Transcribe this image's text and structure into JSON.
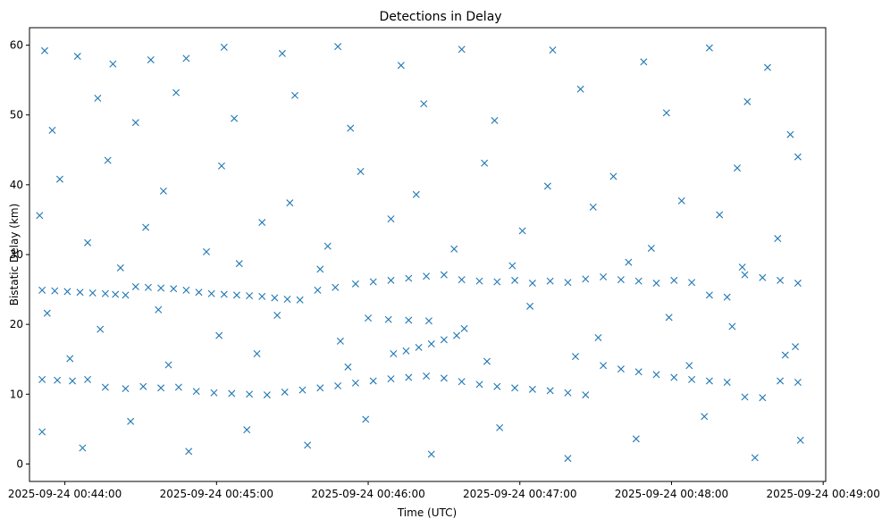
{
  "chart_data": {
    "type": "scatter",
    "title": "Detections in Delay",
    "xlabel": "Time (UTC)",
    "ylabel": "Bistatic Delay (km)",
    "marker": "x",
    "color": "#1f77b4",
    "grid": false,
    "xlim": [
      "2025-09-24 00:43:46",
      "2025-09-24 00:49:01"
    ],
    "ylim": [
      -2.5,
      62.5
    ],
    "x_ticks": [
      "2025-09-24 00:44:00",
      "2025-09-24 00:45:00",
      "2025-09-24 00:46:00",
      "2025-09-24 00:47:00",
      "2025-09-24 00:48:00",
      "2025-09-24 00:49:00"
    ],
    "y_ticks": [
      0,
      10,
      20,
      30,
      40,
      50,
      60
    ],
    "series": [
      {
        "points": [
          [
            "2025-09-24 00:43:51",
            24.9
          ],
          [
            "2025-09-24 00:43:56",
            24.8
          ],
          [
            "2025-09-24 00:44:01",
            24.7
          ],
          [
            "2025-09-24 00:44:06",
            24.6
          ],
          [
            "2025-09-24 00:44:11",
            24.5
          ],
          [
            "2025-09-24 00:44:16",
            24.4
          ],
          [
            "2025-09-24 00:44:20",
            24.3
          ],
          [
            "2025-09-24 00:44:24",
            24.2
          ],
          [
            "2025-09-24 00:44:28",
            25.4
          ],
          [
            "2025-09-24 00:44:33",
            25.3
          ],
          [
            "2025-09-24 00:44:38",
            25.2
          ],
          [
            "2025-09-24 00:44:43",
            25.1
          ],
          [
            "2025-09-24 00:44:48",
            24.9
          ],
          [
            "2025-09-24 00:44:53",
            24.6
          ],
          [
            "2025-09-24 00:44:58",
            24.4
          ],
          [
            "2025-09-24 00:45:03",
            24.3
          ],
          [
            "2025-09-24 00:45:08",
            24.2
          ],
          [
            "2025-09-24 00:45:13",
            24.1
          ],
          [
            "2025-09-24 00:45:18",
            24.0
          ],
          [
            "2025-09-24 00:45:23",
            23.8
          ],
          [
            "2025-09-24 00:45:28",
            23.6
          ],
          [
            "2025-09-24 00:45:33",
            23.5
          ],
          [
            "2025-09-24 00:45:40",
            24.9
          ],
          [
            "2025-09-24 00:45:47",
            25.3
          ],
          [
            "2025-09-24 00:45:55",
            25.8
          ],
          [
            "2025-09-24 00:46:02",
            26.1
          ],
          [
            "2025-09-24 00:46:09",
            26.3
          ],
          [
            "2025-09-24 00:46:16",
            26.6
          ],
          [
            "2025-09-24 00:46:23",
            26.9
          ],
          [
            "2025-09-24 00:46:30",
            27.1
          ],
          [
            "2025-09-24 00:46:37",
            26.4
          ],
          [
            "2025-09-24 00:46:44",
            26.2
          ],
          [
            "2025-09-24 00:46:51",
            26.1
          ],
          [
            "2025-09-24 00:46:58",
            26.3
          ],
          [
            "2025-09-24 00:47:05",
            25.9
          ],
          [
            "2025-09-24 00:47:12",
            26.2
          ],
          [
            "2025-09-24 00:47:19",
            26.0
          ],
          [
            "2025-09-24 00:47:26",
            26.5
          ],
          [
            "2025-09-24 00:47:33",
            26.8
          ],
          [
            "2025-09-24 00:47:40",
            26.4
          ],
          [
            "2025-09-24 00:47:47",
            26.2
          ],
          [
            "2025-09-24 00:47:54",
            25.9
          ],
          [
            "2025-09-24 00:48:01",
            26.3
          ],
          [
            "2025-09-24 00:48:08",
            26.0
          ],
          [
            "2025-09-24 00:48:15",
            24.2
          ],
          [
            "2025-09-24 00:48:22",
            23.9
          ],
          [
            "2025-09-24 00:48:29",
            27.1
          ],
          [
            "2025-09-24 00:48:36",
            26.7
          ],
          [
            "2025-09-24 00:48:43",
            26.3
          ],
          [
            "2025-09-24 00:48:50",
            25.9
          ],
          [
            "2025-09-24 00:43:51",
            12.1
          ],
          [
            "2025-09-24 00:43:57",
            12.0
          ],
          [
            "2025-09-24 00:44:03",
            11.9
          ],
          [
            "2025-09-24 00:44:09",
            12.1
          ],
          [
            "2025-09-24 00:44:16",
            11.0
          ],
          [
            "2025-09-24 00:44:24",
            10.8
          ],
          [
            "2025-09-24 00:44:31",
            11.1
          ],
          [
            "2025-09-24 00:44:38",
            10.9
          ],
          [
            "2025-09-24 00:44:45",
            11.0
          ],
          [
            "2025-09-24 00:44:52",
            10.4
          ],
          [
            "2025-09-24 00:44:59",
            10.2
          ],
          [
            "2025-09-24 00:45:06",
            10.1
          ],
          [
            "2025-09-24 00:45:13",
            10.0
          ],
          [
            "2025-09-24 00:45:20",
            9.9
          ],
          [
            "2025-09-24 00:45:27",
            10.3
          ],
          [
            "2025-09-24 00:45:34",
            10.6
          ],
          [
            "2025-09-24 00:45:41",
            10.9
          ],
          [
            "2025-09-24 00:45:48",
            11.2
          ],
          [
            "2025-09-24 00:45:55",
            11.6
          ],
          [
            "2025-09-24 00:46:02",
            11.9
          ],
          [
            "2025-09-24 00:46:09",
            12.2
          ],
          [
            "2025-09-24 00:46:16",
            12.4
          ],
          [
            "2025-09-24 00:46:23",
            12.6
          ],
          [
            "2025-09-24 00:46:30",
            12.3
          ],
          [
            "2025-09-24 00:46:37",
            11.8
          ],
          [
            "2025-09-24 00:46:44",
            11.4
          ],
          [
            "2025-09-24 00:46:51",
            11.1
          ],
          [
            "2025-09-24 00:46:58",
            10.9
          ],
          [
            "2025-09-24 00:47:05",
            10.7
          ],
          [
            "2025-09-24 00:47:12",
            10.5
          ],
          [
            "2025-09-24 00:47:19",
            10.2
          ],
          [
            "2025-09-24 00:47:26",
            9.9
          ],
          [
            "2025-09-24 00:47:33",
            14.1
          ],
          [
            "2025-09-24 00:47:40",
            13.6
          ],
          [
            "2025-09-24 00:47:47",
            13.2
          ],
          [
            "2025-09-24 00:47:54",
            12.8
          ],
          [
            "2025-09-24 00:48:01",
            12.4
          ],
          [
            "2025-09-24 00:48:08",
            12.1
          ],
          [
            "2025-09-24 00:48:15",
            11.9
          ],
          [
            "2025-09-24 00:48:22",
            11.7
          ],
          [
            "2025-09-24 00:48:29",
            9.6
          ],
          [
            "2025-09-24 00:48:36",
            9.5
          ],
          [
            "2025-09-24 00:48:43",
            11.9
          ],
          [
            "2025-09-24 00:48:50",
            11.7
          ],
          [
            "2025-09-24 00:46:10",
            15.8
          ],
          [
            "2025-09-24 00:46:15",
            16.2
          ],
          [
            "2025-09-24 00:46:20",
            16.7
          ],
          [
            "2025-09-24 00:46:25",
            17.2
          ],
          [
            "2025-09-24 00:46:30",
            17.8
          ],
          [
            "2025-09-24 00:46:35",
            18.4
          ],
          [
            "2025-09-24 00:46:00",
            20.9
          ],
          [
            "2025-09-24 00:46:08",
            20.7
          ],
          [
            "2025-09-24 00:46:16",
            20.6
          ],
          [
            "2025-09-24 00:46:24",
            20.5
          ],
          [
            "2025-09-24 00:43:52",
            59.2
          ],
          [
            "2025-09-24 00:44:05",
            58.4
          ],
          [
            "2025-09-24 00:44:19",
            57.3
          ],
          [
            "2025-09-24 00:44:34",
            57.9
          ],
          [
            "2025-09-24 00:44:48",
            58.1
          ],
          [
            "2025-09-24 00:45:03",
            59.7
          ],
          [
            "2025-09-24 00:45:26",
            58.8
          ],
          [
            "2025-09-24 00:45:48",
            59.8
          ],
          [
            "2025-09-24 00:46:13",
            57.1
          ],
          [
            "2025-09-24 00:46:37",
            59.4
          ],
          [
            "2025-09-24 00:47:13",
            59.3
          ],
          [
            "2025-09-24 00:47:49",
            57.6
          ],
          [
            "2025-09-24 00:48:15",
            59.6
          ],
          [
            "2025-09-24 00:48:38",
            56.8
          ],
          [
            "2025-09-24 00:43:55",
            47.8
          ],
          [
            "2025-09-24 00:44:13",
            52.4
          ],
          [
            "2025-09-24 00:44:28",
            48.9
          ],
          [
            "2025-09-24 00:44:44",
            53.2
          ],
          [
            "2025-09-24 00:45:07",
            49.5
          ],
          [
            "2025-09-24 00:45:31",
            52.8
          ],
          [
            "2025-09-24 00:45:53",
            48.1
          ],
          [
            "2025-09-24 00:46:22",
            51.6
          ],
          [
            "2025-09-24 00:46:50",
            49.2
          ],
          [
            "2025-09-24 00:47:24",
            53.7
          ],
          [
            "2025-09-24 00:47:58",
            50.3
          ],
          [
            "2025-09-24 00:48:30",
            51.9
          ],
          [
            "2025-09-24 00:48:47",
            47.2
          ],
          [
            "2025-09-24 00:43:58",
            40.8
          ],
          [
            "2025-09-24 00:44:17",
            43.5
          ],
          [
            "2025-09-24 00:44:39",
            39.1
          ],
          [
            "2025-09-24 00:45:02",
            42.7
          ],
          [
            "2025-09-24 00:45:29",
            37.4
          ],
          [
            "2025-09-24 00:45:57",
            41.9
          ],
          [
            "2025-09-24 00:46:19",
            38.6
          ],
          [
            "2025-09-24 00:46:46",
            43.1
          ],
          [
            "2025-09-24 00:47:11",
            39.8
          ],
          [
            "2025-09-24 00:47:37",
            41.2
          ],
          [
            "2025-09-24 00:48:04",
            37.7
          ],
          [
            "2025-09-24 00:48:26",
            42.4
          ],
          [
            "2025-09-24 00:48:50",
            44.0
          ],
          [
            "2025-09-24 00:43:50",
            35.6
          ],
          [
            "2025-09-24 00:44:09",
            31.7
          ],
          [
            "2025-09-24 00:44:32",
            33.9
          ],
          [
            "2025-09-24 00:44:56",
            30.4
          ],
          [
            "2025-09-24 00:45:18",
            34.6
          ],
          [
            "2025-09-24 00:45:44",
            31.2
          ],
          [
            "2025-09-24 00:46:09",
            35.1
          ],
          [
            "2025-09-24 00:46:34",
            30.8
          ],
          [
            "2025-09-24 00:47:01",
            33.4
          ],
          [
            "2025-09-24 00:47:29",
            36.8
          ],
          [
            "2025-09-24 00:47:52",
            30.9
          ],
          [
            "2025-09-24 00:48:19",
            35.7
          ],
          [
            "2025-09-24 00:48:42",
            32.3
          ],
          [
            "2025-09-24 00:43:53",
            21.6
          ],
          [
            "2025-09-24 00:44:14",
            19.3
          ],
          [
            "2025-09-24 00:44:37",
            22.1
          ],
          [
            "2025-09-24 00:45:01",
            18.4
          ],
          [
            "2025-09-24 00:45:24",
            21.3
          ],
          [
            "2025-09-24 00:45:49",
            17.6
          ],
          [
            "2025-09-24 00:46:38",
            19.4
          ],
          [
            "2025-09-24 00:47:04",
            22.6
          ],
          [
            "2025-09-24 00:47:31",
            18.1
          ],
          [
            "2025-09-24 00:47:59",
            21.0
          ],
          [
            "2025-09-24 00:48:24",
            19.7
          ],
          [
            "2025-09-24 00:48:49",
            16.8
          ],
          [
            "2025-09-24 00:43:51",
            4.6
          ],
          [
            "2025-09-24 00:44:07",
            2.3
          ],
          [
            "2025-09-24 00:44:26",
            6.1
          ],
          [
            "2025-09-24 00:44:49",
            1.8
          ],
          [
            "2025-09-24 00:45:12",
            4.9
          ],
          [
            "2025-09-24 00:45:36",
            2.7
          ],
          [
            "2025-09-24 00:45:59",
            6.4
          ],
          [
            "2025-09-24 00:46:25",
            1.4
          ],
          [
            "2025-09-24 00:46:52",
            5.2
          ],
          [
            "2025-09-24 00:47:19",
            0.8
          ],
          [
            "2025-09-24 00:47:46",
            3.6
          ],
          [
            "2025-09-24 00:48:13",
            6.8
          ],
          [
            "2025-09-24 00:48:33",
            0.9
          ],
          [
            "2025-09-24 00:48:51",
            3.4
          ],
          [
            "2025-09-24 00:44:02",
            15.1
          ],
          [
            "2025-09-24 00:44:41",
            14.2
          ],
          [
            "2025-09-24 00:45:16",
            15.8
          ],
          [
            "2025-09-24 00:45:52",
            13.9
          ],
          [
            "2025-09-24 00:46:47",
            14.7
          ],
          [
            "2025-09-24 00:47:22",
            15.4
          ],
          [
            "2025-09-24 00:48:07",
            14.1
          ],
          [
            "2025-09-24 00:48:45",
            15.6
          ],
          [
            "2025-09-24 00:44:22",
            28.1
          ],
          [
            "2025-09-24 00:45:09",
            28.7
          ],
          [
            "2025-09-24 00:45:41",
            27.9
          ],
          [
            "2025-09-24 00:46:57",
            28.4
          ],
          [
            "2025-09-24 00:47:43",
            28.9
          ],
          [
            "2025-09-24 00:48:28",
            28.2
          ]
        ]
      }
    ]
  }
}
